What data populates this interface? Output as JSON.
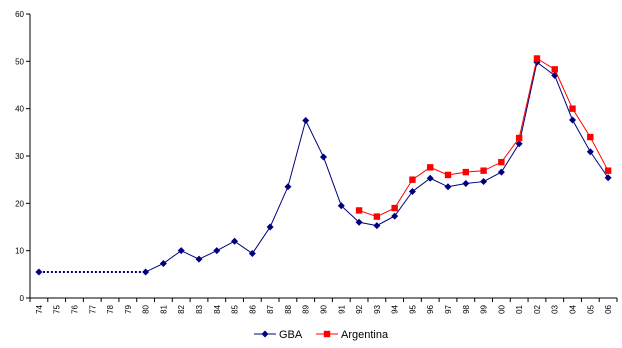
{
  "chart_data": {
    "type": "line",
    "categories": [
      "74",
      "75",
      "76",
      "77",
      "78",
      "79",
      "80",
      "81",
      "82",
      "83",
      "84",
      "85",
      "86",
      "87",
      "88",
      "89",
      "90",
      "91",
      "92",
      "93",
      "94",
      "95",
      "96",
      "97",
      "98",
      "99",
      "00",
      "01",
      "02",
      "03",
      "04",
      "05",
      "06"
    ],
    "ylim": [
      0,
      60
    ],
    "yticks": [
      0,
      10,
      20,
      30,
      40,
      50,
      60
    ],
    "grid": false,
    "legend_position": "bottom-center",
    "series": [
      {
        "name": "GBA",
        "color": "#00007f",
        "marker": "diamond",
        "values": [
          5.5,
          null,
          null,
          null,
          null,
          null,
          5.5,
          7.3,
          10,
          8.2,
          10,
          12,
          9.4,
          15,
          23.5,
          37.5,
          29.8,
          19.5,
          16,
          15.3,
          17.3,
          22.5,
          25.3,
          23.5,
          24.2,
          24.6,
          26.6,
          32.6,
          49.8,
          47,
          37.6,
          30.9,
          25.4
        ],
        "estimated_segment": {
          "from": "74",
          "to": "80",
          "style": "dotted"
        }
      },
      {
        "name": "Argentina",
        "color": "#ff0000",
        "marker": "square",
        "values": [
          null,
          null,
          null,
          null,
          null,
          null,
          null,
          null,
          null,
          null,
          null,
          null,
          null,
          null,
          null,
          null,
          null,
          null,
          18.5,
          17.2,
          19,
          25,
          27.6,
          26,
          26.6,
          26.9,
          28.7,
          33.8,
          50.6,
          48.3,
          40,
          34,
          26.9
        ]
      }
    ]
  }
}
